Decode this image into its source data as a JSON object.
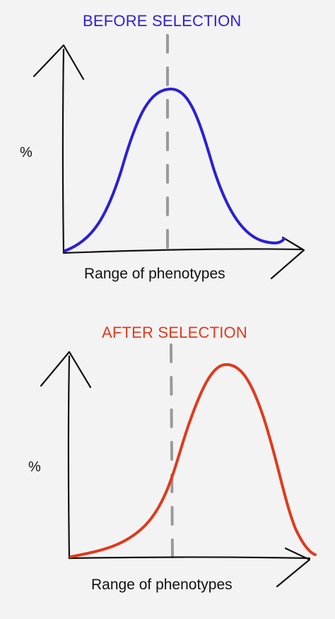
{
  "panels": {
    "before": {
      "title": "BEFORE SELECTION",
      "y_axis_label": "%",
      "x_axis_label": "Range of phenotypes",
      "curve_color": "#2c1fd6"
    },
    "after": {
      "title": "AFTER SELECTION",
      "y_axis_label": "%",
      "x_axis_label": "Range of phenotypes",
      "curve_color": "#e03a1c"
    }
  },
  "axis_color": "#111111",
  "mean_line_color": "#9a9a9a"
}
